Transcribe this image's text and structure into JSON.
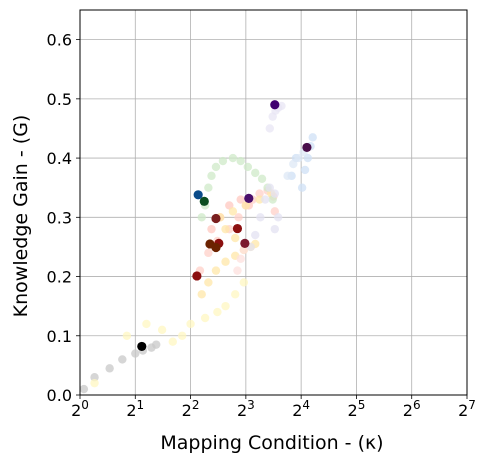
{
  "chart_data": {
    "type": "scatter",
    "title": "",
    "xlabel": "Mapping Condition - (κ)",
    "ylabel": "Knowledge Gain - (G)",
    "x_scale": "log2",
    "xlim": [
      1,
      128
    ],
    "ylim": [
      0,
      0.65
    ],
    "x_ticks": [
      1,
      2,
      4,
      8,
      16,
      32,
      64,
      128
    ],
    "x_tick_labels": [
      {
        "base": "2",
        "exp": "0"
      },
      {
        "base": "2",
        "exp": "1"
      },
      {
        "base": "2",
        "exp": "2"
      },
      {
        "base": "2",
        "exp": "3"
      },
      {
        "base": "2",
        "exp": "4"
      },
      {
        "base": "2",
        "exp": "5"
      },
      {
        "base": "2",
        "exp": "6"
      },
      {
        "base": "2",
        "exp": "7"
      }
    ],
    "y_ticks": [
      0.0,
      0.1,
      0.2,
      0.3,
      0.4,
      0.5,
      0.6
    ],
    "y_tick_labels": [
      "0.0",
      "0.1",
      "0.2",
      "0.3",
      "0.4",
      "0.5",
      "0.6"
    ],
    "grid": true,
    "legend": "none",
    "series": [
      {
        "color": "#000000",
        "trail_color": "#c8c8c8",
        "trail": [
          [
            1.05,
            0.01
          ],
          [
            1.2,
            0.03
          ],
          [
            1.45,
            0.045
          ],
          [
            1.7,
            0.06
          ],
          [
            2.0,
            0.07
          ],
          [
            2.2,
            0.075
          ],
          [
            2.45,
            0.08
          ],
          [
            2.6,
            0.085
          ]
        ],
        "x": [
          2.17
        ],
        "y": [
          0.082
        ]
      },
      {
        "color": "#8b0f0f",
        "trail_color": "#ffd0c8",
        "trail": [
          [
            4.5,
            0.21
          ],
          [
            5.0,
            0.24
          ],
          [
            5.6,
            0.26
          ],
          [
            6.5,
            0.28
          ],
          [
            7.3,
            0.3
          ],
          [
            8.0,
            0.32
          ],
          [
            8.7,
            0.33
          ],
          [
            9.5,
            0.34
          ],
          [
            10.5,
            0.345
          ],
          [
            11.3,
            0.335
          ],
          [
            11.5,
            0.31
          ]
        ],
        "x": [
          4.33,
          5.7,
          7.2
        ],
        "y": [
          0.201,
          0.256,
          0.281
        ]
      },
      {
        "color": "#7a1f1f",
        "trail_color": "#ffc8c0",
        "trail": [
          [
            5.2,
            0.28
          ],
          [
            5.8,
            0.3
          ],
          [
            6.5,
            0.32
          ],
          [
            7.5,
            0.33
          ],
          [
            8.3,
            0.32
          ]
        ],
        "x": [
          5.5
        ],
        "y": [
          0.298
        ]
      },
      {
        "color": "#6b2200",
        "trail_color": "#ffe7a8",
        "trail": [
          [
            4.6,
            0.17
          ],
          [
            5.0,
            0.19
          ],
          [
            5.5,
            0.21
          ],
          [
            6.2,
            0.225
          ],
          [
            7.0,
            0.235
          ],
          [
            7.8,
            0.245
          ],
          [
            8.5,
            0.25
          ],
          [
            9.0,
            0.255
          ],
          [
            7.0,
            0.265
          ],
          [
            6.2,
            0.28
          ],
          [
            5.8,
            0.3
          ],
          [
            6.8,
            0.31
          ],
          [
            8.0,
            0.32
          ],
          [
            9.5,
            0.33
          ],
          [
            11.0,
            0.34
          ]
        ],
        "x": [
          5.1,
          5.5
        ],
        "y": [
          0.255,
          0.249
        ]
      },
      {
        "color": "#7b1a2e",
        "trail_color": "#fde0dd",
        "trail": [
          [
            7.2,
            0.21
          ],
          [
            7.5,
            0.23
          ],
          [
            7.8,
            0.245
          ]
        ],
        "x": [
          7.9
        ],
        "y": [
          0.256
        ]
      },
      {
        "color": "#0b4d1f",
        "trail_color": "#cfe9c8",
        "trail": [
          [
            4.6,
            0.3
          ],
          [
            4.8,
            0.32
          ],
          [
            5.0,
            0.35
          ],
          [
            5.2,
            0.37
          ],
          [
            5.5,
            0.385
          ],
          [
            6.0,
            0.395
          ],
          [
            6.8,
            0.4
          ],
          [
            7.5,
            0.395
          ],
          [
            8.2,
            0.385
          ],
          [
            9.0,
            0.375
          ],
          [
            9.8,
            0.365
          ],
          [
            10.5,
            0.35
          ],
          [
            11.2,
            0.33
          ]
        ],
        "x": [
          4.75
        ],
        "y": [
          0.327
        ]
      },
      {
        "color": "#0b4c8a",
        "trail_color": "#cfe0f5",
        "trail": [
          [
            16.2,
            0.35
          ],
          [
            16.8,
            0.38
          ],
          [
            17.4,
            0.4
          ],
          [
            18.0,
            0.42
          ],
          [
            18.5,
            0.435
          ],
          [
            15.0,
            0.4
          ],
          [
            14.2,
            0.37
          ]
        ],
        "x": [
          4.4
        ],
        "y": [
          0.338
        ]
      },
      {
        "color": "#4a0f6b",
        "trail_color": "#e3e2f2",
        "trail": [
          [
            8.5,
            0.25
          ],
          [
            9.0,
            0.27
          ],
          [
            9.6,
            0.3
          ],
          [
            10.2,
            0.33
          ],
          [
            10.8,
            0.35
          ],
          [
            11.5,
            0.34
          ],
          [
            12.0,
            0.3
          ],
          [
            11.5,
            0.28
          ]
        ],
        "x": [
          8.3
        ],
        "y": [
          0.332
        ]
      },
      {
        "color": "#3f0071",
        "trail_color": "#e8e6f4",
        "trail": [
          [
            10.8,
            0.45
          ],
          [
            11.2,
            0.47
          ],
          [
            11.6,
            0.48
          ],
          [
            12.0,
            0.485
          ],
          [
            12.5,
            0.488
          ]
        ],
        "x": [
          11.5
        ],
        "y": [
          0.49
        ]
      },
      {
        "color": "#4a0f4a",
        "trail_color": "#dde8f5",
        "trail": [
          [
            13.5,
            0.37
          ],
          [
            14.5,
            0.39
          ],
          [
            15.5,
            0.4
          ],
          [
            16.5,
            0.41
          ]
        ],
        "x": [
          17.2
        ],
        "y": [
          0.418
        ]
      },
      {
        "color": "#fff5b0",
        "trail_color": "#fff7c2",
        "trail": [
          [
            1.2,
            0.02
          ],
          [
            1.8,
            0.1
          ],
          [
            2.3,
            0.12
          ],
          [
            2.8,
            0.11
          ],
          [
            3.2,
            0.09
          ],
          [
            3.6,
            0.1
          ],
          [
            4.0,
            0.12
          ],
          [
            4.8,
            0.13
          ],
          [
            5.6,
            0.14
          ],
          [
            6.2,
            0.15
          ],
          [
            7.0,
            0.17
          ],
          [
            7.8,
            0.19
          ]
        ],
        "x": [],
        "y": []
      }
    ]
  }
}
